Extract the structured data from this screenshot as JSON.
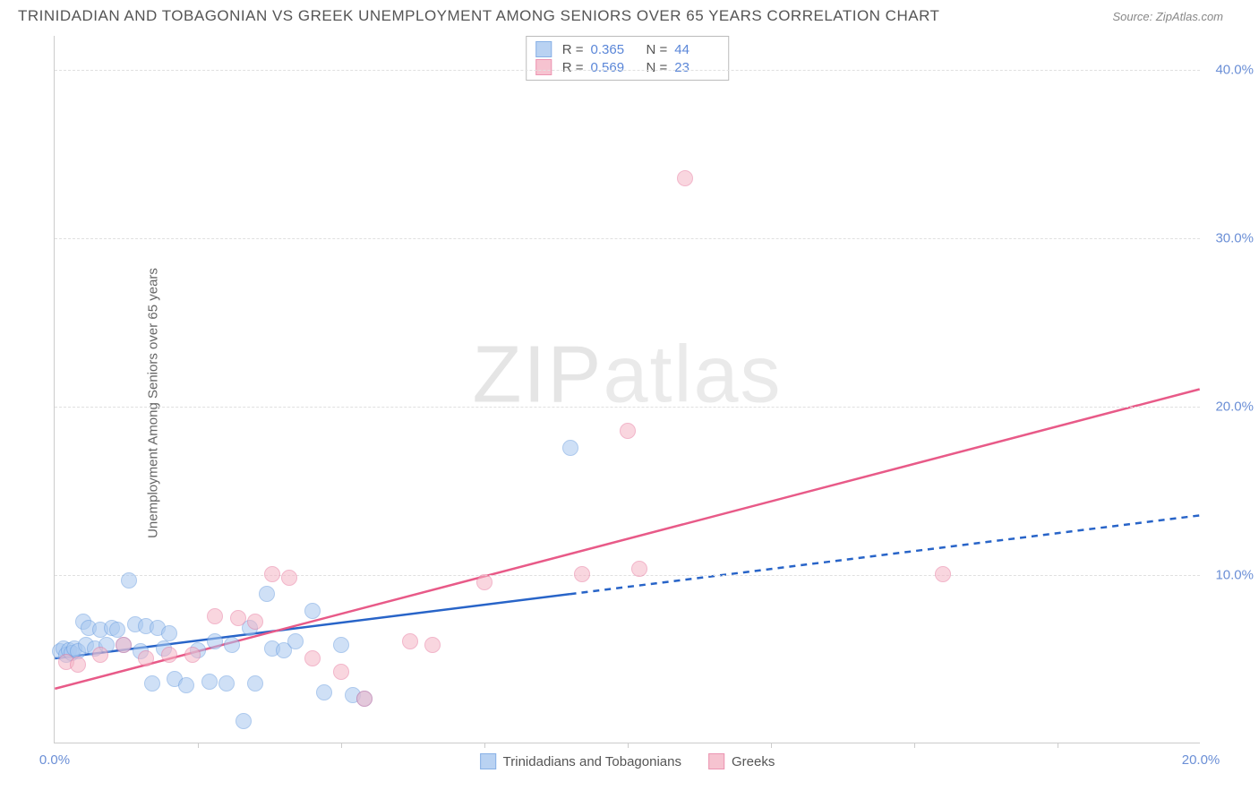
{
  "title": "TRINIDADIAN AND TOBAGONIAN VS GREEK UNEMPLOYMENT AMONG SENIORS OVER 65 YEARS CORRELATION CHART",
  "source": "Source: ZipAtlas.com",
  "ylabel": "Unemployment Among Seniors over 65 years",
  "watermark_bold": "ZIP",
  "watermark_thin": "atlas",
  "chart": {
    "type": "scatter",
    "xlim": [
      0,
      20
    ],
    "ylim": [
      0,
      42
    ],
    "x_ticks": [
      {
        "v": 0,
        "label": "0.0%"
      },
      {
        "v": 20,
        "label": "20.0%"
      }
    ],
    "x_minor_ticks": [
      2.5,
      5,
      7.5,
      10,
      12.5,
      15,
      17.5
    ],
    "y_ticks": [
      {
        "v": 10,
        "label": "10.0%"
      },
      {
        "v": 20,
        "label": "20.0%"
      },
      {
        "v": 30,
        "label": "30.0%"
      },
      {
        "v": 40,
        "label": "40.0%"
      }
    ],
    "grid_color": "#e0e0e0",
    "background_color": "#ffffff",
    "axis_color": "#cccccc",
    "tick_label_color": "#6b8fd6",
    "point_radius": 9,
    "series": [
      {
        "name": "Trinidadians and Tobagonians",
        "fill": "#a8c8f0",
        "stroke": "#6b9ee0",
        "stroke_opacity": 0.9,
        "fill_opacity": 0.55,
        "r_value": "0.365",
        "n_value": "44",
        "trend": {
          "x1": 0,
          "y1": 5.0,
          "x2": 20,
          "y2": 13.5,
          "solid_until_x": 9.0,
          "color": "#2864c8",
          "width": 2.5
        },
        "points": [
          [
            0.1,
            5.4
          ],
          [
            0.15,
            5.6
          ],
          [
            0.2,
            5.2
          ],
          [
            0.25,
            5.5
          ],
          [
            0.3,
            5.3
          ],
          [
            0.35,
            5.6
          ],
          [
            0.4,
            5.4
          ],
          [
            0.5,
            7.2
          ],
          [
            0.55,
            5.8
          ],
          [
            0.6,
            6.8
          ],
          [
            0.7,
            5.6
          ],
          [
            0.8,
            6.7
          ],
          [
            0.9,
            5.8
          ],
          [
            1.0,
            6.8
          ],
          [
            1.1,
            6.7
          ],
          [
            1.2,
            5.8
          ],
          [
            1.3,
            9.6
          ],
          [
            1.4,
            7.0
          ],
          [
            1.5,
            5.4
          ],
          [
            1.6,
            6.9
          ],
          [
            1.7,
            3.5
          ],
          [
            1.8,
            6.8
          ],
          [
            1.9,
            5.6
          ],
          [
            2.0,
            6.5
          ],
          [
            2.1,
            3.8
          ],
          [
            2.3,
            3.4
          ],
          [
            2.5,
            5.5
          ],
          [
            2.7,
            3.6
          ],
          [
            2.8,
            6.0
          ],
          [
            3.0,
            3.5
          ],
          [
            3.1,
            5.8
          ],
          [
            3.3,
            1.3
          ],
          [
            3.4,
            6.8
          ],
          [
            3.5,
            3.5
          ],
          [
            3.7,
            8.8
          ],
          [
            3.8,
            5.6
          ],
          [
            4.0,
            5.5
          ],
          [
            4.2,
            6.0
          ],
          [
            4.5,
            7.8
          ],
          [
            4.7,
            3.0
          ],
          [
            5.0,
            5.8
          ],
          [
            5.2,
            2.8
          ],
          [
            5.4,
            2.6
          ],
          [
            9.0,
            17.5
          ]
        ]
      },
      {
        "name": "Greeks",
        "fill": "#f5b5c5",
        "stroke": "#e87ba0",
        "stroke_opacity": 0.9,
        "fill_opacity": 0.55,
        "r_value": "0.569",
        "n_value": "23",
        "trend": {
          "x1": 0,
          "y1": 3.2,
          "x2": 20,
          "y2": 21.0,
          "solid_until_x": 20,
          "color": "#e85a88",
          "width": 2.5
        },
        "points": [
          [
            0.2,
            4.8
          ],
          [
            0.4,
            4.6
          ],
          [
            0.8,
            5.2
          ],
          [
            1.2,
            5.8
          ],
          [
            1.6,
            5.0
          ],
          [
            2.0,
            5.2
          ],
          [
            2.4,
            5.2
          ],
          [
            2.8,
            7.5
          ],
          [
            3.2,
            7.4
          ],
          [
            3.5,
            7.2
          ],
          [
            3.8,
            10.0
          ],
          [
            4.1,
            9.8
          ],
          [
            5.0,
            4.2
          ],
          [
            5.4,
            2.6
          ],
          [
            6.2,
            6.0
          ],
          [
            6.6,
            5.8
          ],
          [
            7.5,
            9.5
          ],
          [
            9.2,
            10.0
          ],
          [
            10.0,
            18.5
          ],
          [
            10.2,
            10.3
          ],
          [
            11.0,
            33.5
          ],
          [
            15.5,
            10.0
          ],
          [
            4.5,
            5.0
          ]
        ]
      }
    ]
  }
}
